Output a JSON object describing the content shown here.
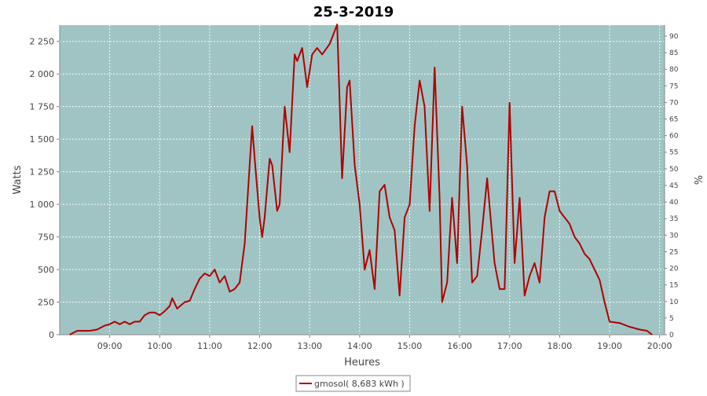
{
  "chart_data": {
    "type": "line",
    "title": "25-3-2019",
    "xlabel": "Heures",
    "ylabel": "Watts",
    "y2label": "%",
    "x_ticks": [
      "09:00",
      "10:00",
      "11:00",
      "12:00",
      "13:00",
      "14:00",
      "15:00",
      "16:00",
      "17:00",
      "18:00",
      "19:00",
      "20:00"
    ],
    "xlim": [
      8.0,
      20.1
    ],
    "ylim": [
      0,
      2375
    ],
    "y_ticks": [
      0,
      250,
      500,
      750,
      1000,
      1250,
      1500,
      1750,
      2000,
      2250
    ],
    "y_tick_labels": [
      "0",
      "250",
      "500",
      "750",
      "1 000",
      "1 250",
      "1 500",
      "1 750",
      "2 000",
      "2 250"
    ],
    "y2lim": [
      0,
      93.3
    ],
    "y2_ticks": [
      0,
      5,
      10,
      15,
      20,
      25,
      30,
      35,
      40,
      45,
      50,
      55,
      60,
      65,
      70,
      75,
      80,
      85,
      90
    ],
    "grid": true,
    "plot_background": "#a0c4c4",
    "legend_position": "bottom-center",
    "series": [
      {
        "name": "gmosol( 8,683 kWh )",
        "color": "#b00000",
        "points": [
          [
            8.2,
            0
          ],
          [
            8.35,
            30
          ],
          [
            8.6,
            30
          ],
          [
            8.75,
            40
          ],
          [
            8.9,
            70
          ],
          [
            9.0,
            80
          ],
          [
            9.1,
            100
          ],
          [
            9.2,
            80
          ],
          [
            9.3,
            100
          ],
          [
            9.4,
            80
          ],
          [
            9.5,
            100
          ],
          [
            9.6,
            100
          ],
          [
            9.7,
            150
          ],
          [
            9.8,
            170
          ],
          [
            9.9,
            170
          ],
          [
            10.0,
            150
          ],
          [
            10.1,
            180
          ],
          [
            10.2,
            220
          ],
          [
            10.25,
            280
          ],
          [
            10.35,
            200
          ],
          [
            10.5,
            250
          ],
          [
            10.6,
            260
          ],
          [
            10.7,
            350
          ],
          [
            10.8,
            430
          ],
          [
            10.9,
            470
          ],
          [
            11.0,
            450
          ],
          [
            11.1,
            500
          ],
          [
            11.2,
            400
          ],
          [
            11.3,
            450
          ],
          [
            11.4,
            330
          ],
          [
            11.5,
            350
          ],
          [
            11.6,
            400
          ],
          [
            11.7,
            700
          ],
          [
            11.8,
            1300
          ],
          [
            11.85,
            1600
          ],
          [
            11.9,
            1350
          ],
          [
            12.0,
            900
          ],
          [
            12.05,
            750
          ],
          [
            12.1,
            900
          ],
          [
            12.2,
            1350
          ],
          [
            12.25,
            1300
          ],
          [
            12.35,
            950
          ],
          [
            12.4,
            1000
          ],
          [
            12.5,
            1750
          ],
          [
            12.6,
            1400
          ],
          [
            12.7,
            2150
          ],
          [
            12.75,
            2100
          ],
          [
            12.85,
            2200
          ],
          [
            12.95,
            1900
          ],
          [
            13.05,
            2150
          ],
          [
            13.15,
            2200
          ],
          [
            13.25,
            2150
          ],
          [
            13.4,
            2230
          ],
          [
            13.55,
            2380
          ],
          [
            13.65,
            1200
          ],
          [
            13.75,
            1900
          ],
          [
            13.8,
            1950
          ],
          [
            13.9,
            1300
          ],
          [
            14.0,
            1000
          ],
          [
            14.05,
            750
          ],
          [
            14.1,
            500
          ],
          [
            14.2,
            650
          ],
          [
            14.3,
            350
          ],
          [
            14.4,
            1100
          ],
          [
            14.5,
            1150
          ],
          [
            14.6,
            900
          ],
          [
            14.7,
            800
          ],
          [
            14.8,
            300
          ],
          [
            14.9,
            900
          ],
          [
            15.0,
            1000
          ],
          [
            15.1,
            1600
          ],
          [
            15.2,
            1950
          ],
          [
            15.3,
            1750
          ],
          [
            15.4,
            950
          ],
          [
            15.5,
            2050
          ],
          [
            15.6,
            1050
          ],
          [
            15.65,
            250
          ],
          [
            15.75,
            400
          ],
          [
            15.85,
            1050
          ],
          [
            15.95,
            550
          ],
          [
            16.05,
            1750
          ],
          [
            16.15,
            1300
          ],
          [
            16.25,
            400
          ],
          [
            16.35,
            450
          ],
          [
            16.45,
            800
          ],
          [
            16.55,
            1200
          ],
          [
            16.7,
            550
          ],
          [
            16.8,
            350
          ],
          [
            16.9,
            350
          ],
          [
            17.0,
            1780
          ],
          [
            17.1,
            550
          ],
          [
            17.2,
            1050
          ],
          [
            17.3,
            300
          ],
          [
            17.4,
            450
          ],
          [
            17.5,
            550
          ],
          [
            17.6,
            400
          ],
          [
            17.7,
            900
          ],
          [
            17.8,
            1100
          ],
          [
            17.9,
            1100
          ],
          [
            18.0,
            950
          ],
          [
            18.1,
            900
          ],
          [
            18.2,
            850
          ],
          [
            18.3,
            750
          ],
          [
            18.4,
            700
          ],
          [
            18.5,
            620
          ],
          [
            18.6,
            580
          ],
          [
            18.7,
            500
          ],
          [
            18.8,
            420
          ],
          [
            18.9,
            250
          ],
          [
            19.0,
            100
          ],
          [
            19.2,
            90
          ],
          [
            19.4,
            60
          ],
          [
            19.6,
            40
          ],
          [
            19.75,
            30
          ],
          [
            19.85,
            0
          ]
        ]
      }
    ]
  }
}
